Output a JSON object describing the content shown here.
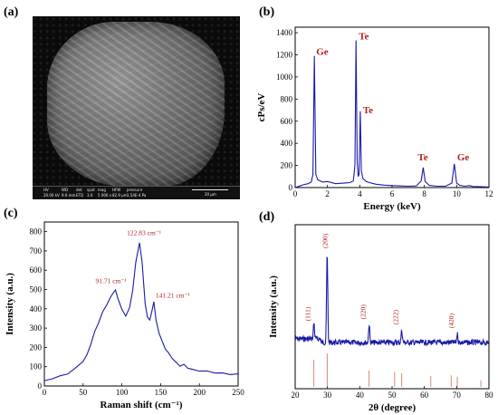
{
  "panels": {
    "a": {
      "label": "(a)"
    },
    "b": {
      "label": "(b)"
    },
    "c": {
      "label": "(c)"
    },
    "d": {
      "label": "(d)"
    }
  },
  "sem": {
    "info": [
      "HV",
      "WD",
      "det",
      "spot",
      "mag",
      "HFW",
      "pressure",
      "20.00 kV",
      "9.6 mm",
      "ETD",
      "3.0",
      "5 000 x",
      "82.9 µm",
      "1.54E-4 Pa"
    ],
    "scale": "20 µm"
  },
  "colors": {
    "series": "#1a1aa8",
    "annotation": "#b22222",
    "reference": "#d06a50"
  },
  "chart_data": [
    {
      "id": "b",
      "type": "line",
      "xlabel": "Energy (keV)",
      "ylabel": "cPs/eV",
      "xlim": [
        0,
        12
      ],
      "ylim": [
        0,
        1450
      ],
      "xticks": [
        0,
        2,
        4,
        6,
        8,
        10,
        12
      ],
      "yticks": [
        0,
        200,
        400,
        600,
        800,
        1000,
        1200,
        1400
      ],
      "grid": false,
      "peaks": [
        {
          "label": "Ge",
          "x": 1.19,
          "y": 1190
        },
        {
          "label": "Te",
          "x": 3.77,
          "y": 1330
        },
        {
          "label": "Te",
          "x": 4.03,
          "y": 690
        },
        {
          "label": "Te",
          "x": 7.93,
          "y": 180
        },
        {
          "label": "Ge",
          "x": 9.86,
          "y": 215
        }
      ],
      "x": [
        0,
        0.2,
        0.5,
        0.8,
        1.0,
        1.1,
        1.19,
        1.28,
        1.4,
        1.7,
        2.0,
        2.5,
        3.0,
        3.4,
        3.6,
        3.7,
        3.77,
        3.84,
        3.9,
        3.96,
        4.03,
        4.1,
        4.2,
        4.4,
        4.6,
        5.0,
        5.5,
        6.0,
        6.5,
        7.0,
        7.5,
        7.8,
        7.93,
        8.05,
        8.3,
        8.8,
        9.3,
        9.7,
        9.86,
        10.0,
        10.2,
        10.5,
        10.8,
        11.0,
        11.5,
        12.0
      ],
      "y": [
        0,
        10,
        25,
        35,
        50,
        120,
        1190,
        120,
        70,
        50,
        55,
        35,
        40,
        45,
        60,
        200,
        1330,
        230,
        100,
        120,
        690,
        150,
        80,
        55,
        45,
        30,
        22,
        18,
        15,
        12,
        15,
        60,
        180,
        55,
        20,
        12,
        12,
        40,
        215,
        40,
        20,
        12,
        18,
        10,
        8,
        5
      ]
    },
    {
      "id": "c",
      "type": "line",
      "xlabel": "Raman shift (cm⁻¹)",
      "ylabel": "Intensity (a.u.)",
      "xlim": [
        0,
        250
      ],
      "ylim": [
        0,
        850
      ],
      "xticks": [
        0,
        50,
        100,
        150,
        200,
        250
      ],
      "yticks": [
        0,
        100,
        200,
        300,
        400,
        500,
        600,
        700,
        800
      ],
      "grid": false,
      "annotations": [
        {
          "text": "122.83 cm⁻¹",
          "x": 122.83,
          "y": 745
        },
        {
          "text": "91.71 cm⁻¹",
          "x": 91.71,
          "y": 495
        },
        {
          "text": "141.21 cm⁻¹",
          "x": 141.21,
          "y": 440
        }
      ],
      "x": [
        0,
        10,
        20,
        30,
        40,
        50,
        55,
        60,
        65,
        70,
        75,
        80,
        85,
        88,
        91.71,
        95,
        100,
        105,
        110,
        114,
        118,
        122.83,
        126,
        130,
        133,
        136,
        139,
        141.21,
        144,
        148,
        152,
        156,
        160,
        165,
        170,
        175,
        180,
        185,
        190,
        200,
        210,
        220,
        230,
        240,
        250
      ],
      "y": [
        25,
        40,
        50,
        65,
        90,
        130,
        160,
        220,
        280,
        330,
        380,
        420,
        455,
        480,
        495,
        455,
        395,
        365,
        405,
        500,
        640,
        745,
        640,
        430,
        355,
        345,
        390,
        440,
        340,
        275,
        230,
        195,
        170,
        145,
        120,
        105,
        110,
        95,
        85,
        80,
        75,
        70,
        65,
        62,
        60
      ]
    },
    {
      "id": "d",
      "type": "line",
      "xlabel": "2θ (degree)",
      "ylabel": "Intensity (a.u.)",
      "xlim": [
        20,
        80
      ],
      "xticks": [
        20,
        30,
        40,
        50,
        60,
        70,
        80
      ],
      "grid": false,
      "peaks": [
        {
          "label": "(111)",
          "x": 25.8,
          "y": 18
        },
        {
          "label": "(200)",
          "x": 29.9,
          "y": 100
        },
        {
          "label": "(220)",
          "x": 42.9,
          "y": 20
        },
        {
          "label": "(222)",
          "x": 53.0,
          "y": 14
        },
        {
          "label": "(420)",
          "x": 70.2,
          "y": 10
        }
      ],
      "reference_lines": [
        {
          "x": 25.8,
          "h": 0.75
        },
        {
          "x": 29.9,
          "h": 0.92
        },
        {
          "x": 42.9,
          "h": 0.45
        },
        {
          "x": 50.8,
          "h": 0.42
        },
        {
          "x": 53.0,
          "h": 0.38
        },
        {
          "x": 62.0,
          "h": 0.3
        },
        {
          "x": 68.3,
          "h": 0.32
        },
        {
          "x": 70.2,
          "h": 0.28
        },
        {
          "x": 77.5,
          "h": 0.18
        }
      ]
    }
  ]
}
